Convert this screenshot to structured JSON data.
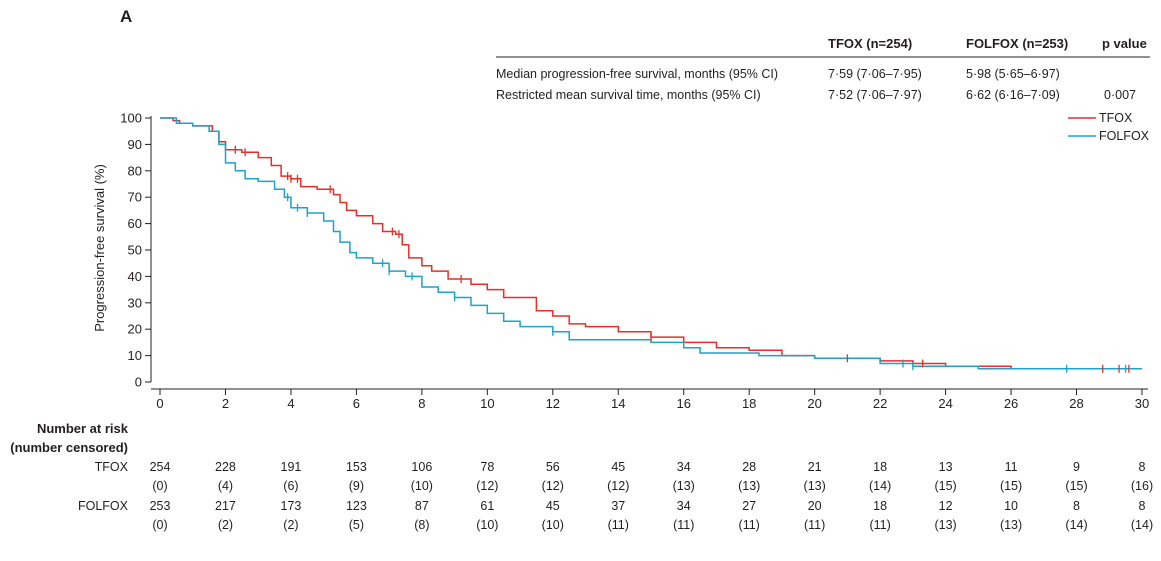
{
  "panel_label": "A",
  "table": {
    "headers": {
      "tfox": "TFOX (n=254)",
      "folfox": "FOLFOX (n=253)",
      "pvalue": "p value"
    },
    "rows": [
      {
        "label": "Median progression-free survival, months (95% CI)",
        "tfox": "7·59 (7·06–7·95)",
        "folfox": "5·98 (5·65–6·97)",
        "pvalue": ""
      },
      {
        "label": "Restricted mean survival time, months (95% CI)",
        "tfox": "7·52 (7·06–7·97)",
        "folfox": "6·62 (6·16–7·09)",
        "pvalue": "0·007"
      }
    ]
  },
  "chart_data": {
    "type": "line",
    "subtype": "kaplan-meier-step",
    "title": "",
    "xlabel": "",
    "ylabel": "Progression-free survival (%)",
    "xlim": [
      0,
      30
    ],
    "ylim": [
      0,
      100
    ],
    "x_ticks": [
      0,
      2,
      4,
      6,
      8,
      10,
      12,
      14,
      16,
      18,
      20,
      22,
      24,
      26,
      28,
      30
    ],
    "y_ticks": [
      0,
      10,
      20,
      30,
      40,
      50,
      60,
      70,
      80,
      90,
      100
    ],
    "legend_position": "top-right",
    "series": [
      {
        "name": "TFOX",
        "color": "#e2312a",
        "points": [
          [
            0,
            100
          ],
          [
            0.3,
            100
          ],
          [
            0.4,
            99
          ],
          [
            0.6,
            98
          ],
          [
            1,
            97
          ],
          [
            1.4,
            97
          ],
          [
            1.6,
            95
          ],
          [
            1.8,
            91
          ],
          [
            2,
            88
          ],
          [
            2.5,
            87
          ],
          [
            3,
            85
          ],
          [
            3.4,
            82
          ],
          [
            3.7,
            78
          ],
          [
            4,
            77
          ],
          [
            4.3,
            74
          ],
          [
            4.8,
            73
          ],
          [
            5.3,
            71
          ],
          [
            5.5,
            68
          ],
          [
            5.7,
            65
          ],
          [
            6,
            63
          ],
          [
            6.5,
            60
          ],
          [
            6.8,
            57
          ],
          [
            7.2,
            56
          ],
          [
            7.4,
            52
          ],
          [
            7.6,
            47
          ],
          [
            8,
            44
          ],
          [
            8.3,
            42
          ],
          [
            8.8,
            39
          ],
          [
            9.5,
            37
          ],
          [
            10,
            35
          ],
          [
            10.5,
            32
          ],
          [
            11.5,
            27
          ],
          [
            12,
            25
          ],
          [
            12.5,
            22
          ],
          [
            13,
            21
          ],
          [
            14,
            19
          ],
          [
            15,
            17
          ],
          [
            16,
            15
          ],
          [
            17,
            13
          ],
          [
            18,
            12
          ],
          [
            19,
            10
          ],
          [
            20,
            9
          ],
          [
            21,
            9
          ],
          [
            22,
            8
          ],
          [
            23,
            7
          ],
          [
            24,
            6
          ],
          [
            26,
            5
          ],
          [
            28,
            5
          ],
          [
            30,
            5
          ]
        ],
        "censor_times": [
          2.3,
          2.6,
          3.9,
          4.0,
          4.2,
          5.2,
          7.1,
          7.3,
          9.2,
          15,
          21,
          23.3,
          28.8,
          29.3,
          29.6
        ]
      },
      {
        "name": "FOLFOX",
        "color": "#1ea3c9",
        "points": [
          [
            0,
            100
          ],
          [
            0.5,
            98
          ],
          [
            1,
            97
          ],
          [
            1.5,
            95
          ],
          [
            1.8,
            90
          ],
          [
            2,
            83
          ],
          [
            2.3,
            80
          ],
          [
            2.6,
            77
          ],
          [
            3,
            76
          ],
          [
            3.5,
            73
          ],
          [
            3.8,
            70
          ],
          [
            4,
            66
          ],
          [
            4.5,
            64
          ],
          [
            5,
            61
          ],
          [
            5.3,
            57
          ],
          [
            5.5,
            53
          ],
          [
            5.8,
            49
          ],
          [
            6,
            47
          ],
          [
            6.5,
            45
          ],
          [
            7,
            42
          ],
          [
            7.5,
            40
          ],
          [
            8,
            36
          ],
          [
            8.5,
            34
          ],
          [
            9,
            32
          ],
          [
            9.5,
            29
          ],
          [
            10,
            26
          ],
          [
            10.5,
            23
          ],
          [
            11,
            21
          ],
          [
            12,
            19
          ],
          [
            12.5,
            16
          ],
          [
            13,
            16
          ],
          [
            14,
            16
          ],
          [
            15,
            15
          ],
          [
            16,
            13
          ],
          [
            16.5,
            11
          ],
          [
            18,
            11
          ],
          [
            18.3,
            10
          ],
          [
            20,
            9
          ],
          [
            22,
            7
          ],
          [
            23,
            6
          ],
          [
            25,
            5
          ],
          [
            28,
            5
          ],
          [
            30,
            5
          ]
        ],
        "censor_times": [
          3.9,
          4.2,
          4.5,
          6.8,
          7.0,
          7.7,
          9.0,
          12.0,
          22.7,
          23.0,
          27.7,
          29.5
        ]
      }
    ],
    "risk_table": {
      "title_line1": "Number at risk",
      "title_line2": "(number censored)",
      "times": [
        0,
        2,
        4,
        6,
        8,
        10,
        12,
        14,
        16,
        18,
        20,
        22,
        24,
        26,
        28,
        30
      ],
      "rows": [
        {
          "name": "TFOX",
          "at_risk": [
            "254",
            "228",
            "191",
            "153",
            "106",
            "78",
            "56",
            "45",
            "34",
            "28",
            "21",
            "18",
            "13",
            "11",
            "9",
            "8"
          ],
          "censored": [
            "(0)",
            "(4)",
            "(6)",
            "(9)",
            "(10)",
            "(12)",
            "(12)",
            "(12)",
            "(13)",
            "(13)",
            "(13)",
            "(14)",
            "(15)",
            "(15)",
            "(15)",
            "(16)"
          ]
        },
        {
          "name": "FOLFOX",
          "at_risk": [
            "253",
            "217",
            "173",
            "123",
            "87",
            "61",
            "45",
            "37",
            "34",
            "27",
            "20",
            "18",
            "12",
            "10",
            "8",
            "8"
          ],
          "censored": [
            "(0)",
            "(2)",
            "(2)",
            "(5)",
            "(8)",
            "(10)",
            "(10)",
            "(11)",
            "(11)",
            "(11)",
            "(11)",
            "(11)",
            "(13)",
            "(13)",
            "(14)",
            "(14)"
          ]
        }
      ]
    }
  }
}
